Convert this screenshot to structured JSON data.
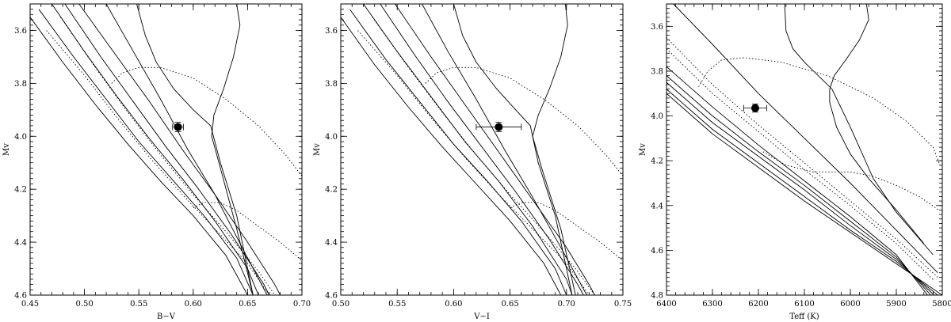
{
  "chart_data": [
    {
      "type": "line",
      "xlabel": "B−V",
      "ylabel": "Mv",
      "xlim": [
        0.45,
        0.7
      ],
      "ylim": [
        4.6,
        3.5
      ],
      "xticks": [
        "0.45",
        "0.50",
        "0.55",
        "0.60",
        "0.65",
        "0.70"
      ],
      "yticks": [
        "3.6",
        "3.8",
        "4.0",
        "4.2",
        "4.4",
        "4.6"
      ],
      "series": [
        {
          "style": "solid",
          "x": [
            0.45,
            0.48,
            0.51,
            0.54,
            0.57,
            0.6,
            0.63,
            0.65
          ],
          "y": [
            3.55,
            3.72,
            3.88,
            4.03,
            4.17,
            4.3,
            4.45,
            4.6
          ]
        },
        {
          "style": "solid",
          "x": [
            0.458,
            0.49,
            0.52,
            0.55,
            0.58,
            0.61,
            0.64,
            0.655
          ],
          "y": [
            3.52,
            3.7,
            3.86,
            4.02,
            4.16,
            4.3,
            4.46,
            4.6
          ]
        },
        {
          "style": "solid",
          "x": [
            0.47,
            0.5,
            0.53,
            0.56,
            0.59,
            0.62,
            0.65,
            0.66
          ],
          "y": [
            3.5,
            3.68,
            3.85,
            4.01,
            4.16,
            4.32,
            4.5,
            4.6
          ]
        },
        {
          "style": "solid",
          "x": [
            0.482,
            0.515,
            0.545,
            0.575,
            0.605,
            0.635,
            0.665,
            0.67
          ],
          "y": [
            3.5,
            3.7,
            3.87,
            4.04,
            4.2,
            4.37,
            4.56,
            4.6
          ]
        },
        {
          "style": "solid",
          "x": [
            0.495,
            0.53,
            0.56,
            0.59,
            0.62,
            0.65,
            0.675,
            0.68
          ],
          "y": [
            3.5,
            3.7,
            3.87,
            4.05,
            4.22,
            4.4,
            4.56,
            4.6
          ]
        },
        {
          "style": "solid",
          "x": [
            0.52,
            0.545,
            0.57,
            0.595,
            0.62,
            0.645,
            0.668
          ],
          "y": [
            3.5,
            3.68,
            3.86,
            4.05,
            4.22,
            4.42,
            4.6
          ]
        },
        {
          "style": "solid",
          "x": [
            0.548,
            0.556,
            0.566,
            0.582,
            0.6,
            0.616,
            0.625,
            0.64,
            0.655
          ],
          "y": [
            3.5,
            3.62,
            3.72,
            3.82,
            3.9,
            3.96,
            4.1,
            4.3,
            4.6
          ]
        },
        {
          "style": "solid",
          "x": [
            0.64,
            0.643,
            0.637,
            0.628,
            0.619,
            0.617,
            0.625,
            0.64,
            0.655
          ],
          "y": [
            3.5,
            3.58,
            3.7,
            3.82,
            3.92,
            4.0,
            4.12,
            4.35,
            4.6
          ]
        },
        {
          "style": "dotted",
          "x": [
            0.465,
            0.5,
            0.53,
            0.56,
            0.59,
            0.62,
            0.65,
            0.67
          ],
          "y": [
            3.6,
            3.77,
            3.93,
            4.08,
            4.22,
            4.35,
            4.48,
            4.6
          ]
        },
        {
          "style": "dotted",
          "x": [
            0.478,
            0.51,
            0.54,
            0.57,
            0.6,
            0.63,
            0.66,
            0.675
          ],
          "y": [
            3.55,
            3.74,
            3.91,
            4.07,
            4.22,
            4.36,
            4.51,
            4.6
          ]
        },
        {
          "style": "dotted",
          "x": [
            0.525,
            0.535,
            0.55,
            0.57,
            0.6,
            0.63,
            0.66,
            0.685,
            0.7
          ],
          "y": [
            3.8,
            3.76,
            3.74,
            3.74,
            3.78,
            3.86,
            3.96,
            4.07,
            4.15
          ]
        },
        {
          "style": "dotted",
          "x": [
            0.6,
            0.61,
            0.625,
            0.64,
            0.66,
            0.68,
            0.7
          ],
          "y": [
            4.27,
            4.25,
            4.25,
            4.28,
            4.34,
            4.4,
            4.47
          ]
        }
      ],
      "points": [
        {
          "x": 0.586,
          "y": 3.965,
          "xerr": 0.005,
          "yerr": 0.018
        }
      ]
    },
    {
      "type": "line",
      "xlabel": "V−I",
      "ylabel": "Mv",
      "xlim": [
        0.5,
        0.75
      ],
      "ylim": [
        4.6,
        3.5
      ],
      "xticks": [
        "0.50",
        "0.55",
        "0.60",
        "0.65",
        "0.70",
        "0.75"
      ],
      "yticks": [
        "3.6",
        "3.8",
        "4.0",
        "4.2",
        "4.4",
        "4.6"
      ],
      "series": [
        {
          "style": "solid",
          "x": [
            0.5,
            0.53,
            0.56,
            0.59,
            0.62,
            0.65,
            0.68,
            0.695
          ],
          "y": [
            3.55,
            3.73,
            3.89,
            4.04,
            4.18,
            4.32,
            4.48,
            4.6
          ]
        },
        {
          "style": "solid",
          "x": [
            0.508,
            0.54,
            0.57,
            0.6,
            0.63,
            0.66,
            0.69,
            0.7
          ],
          "y": [
            3.52,
            3.71,
            3.87,
            4.03,
            4.17,
            4.32,
            4.5,
            4.6
          ]
        },
        {
          "style": "solid",
          "x": [
            0.52,
            0.55,
            0.58,
            0.61,
            0.64,
            0.67,
            0.7,
            0.705
          ],
          "y": [
            3.5,
            3.68,
            3.85,
            4.02,
            4.17,
            4.34,
            4.54,
            4.6
          ]
        },
        {
          "style": "solid",
          "x": [
            0.535,
            0.565,
            0.595,
            0.625,
            0.655,
            0.685,
            0.71,
            0.715
          ],
          "y": [
            3.5,
            3.69,
            3.87,
            4.04,
            4.21,
            4.39,
            4.56,
            4.6
          ]
        },
        {
          "style": "solid",
          "x": [
            0.548,
            0.58,
            0.61,
            0.64,
            0.67,
            0.7,
            0.72,
            0.725
          ],
          "y": [
            3.5,
            3.7,
            3.88,
            4.06,
            4.24,
            4.42,
            4.56,
            4.6
          ]
        },
        {
          "style": "solid",
          "x": [
            0.572,
            0.595,
            0.62,
            0.645,
            0.67,
            0.695,
            0.718
          ],
          "y": [
            3.5,
            3.68,
            3.86,
            4.05,
            4.23,
            4.42,
            4.6
          ]
        },
        {
          "style": "solid",
          "x": [
            0.6,
            0.608,
            0.62,
            0.638,
            0.655,
            0.668,
            0.675,
            0.69,
            0.705
          ],
          "y": [
            3.5,
            3.62,
            3.72,
            3.82,
            3.9,
            3.96,
            4.1,
            4.3,
            4.6
          ]
        },
        {
          "style": "solid",
          "x": [
            0.699,
            0.701,
            0.695,
            0.685,
            0.675,
            0.67,
            0.678,
            0.695,
            0.708
          ],
          "y": [
            3.5,
            3.58,
            3.7,
            3.82,
            3.92,
            4.0,
            4.12,
            4.35,
            4.6
          ]
        },
        {
          "style": "dotted",
          "x": [
            0.515,
            0.55,
            0.58,
            0.61,
            0.64,
            0.67,
            0.7,
            0.72
          ],
          "y": [
            3.6,
            3.77,
            3.93,
            4.08,
            4.22,
            4.35,
            4.48,
            4.6
          ]
        },
        {
          "style": "dotted",
          "x": [
            0.528,
            0.56,
            0.59,
            0.62,
            0.65,
            0.68,
            0.71,
            0.725
          ],
          "y": [
            3.55,
            3.74,
            3.91,
            4.07,
            4.22,
            4.36,
            4.51,
            4.6
          ]
        },
        {
          "style": "dotted",
          "x": [
            0.575,
            0.585,
            0.6,
            0.62,
            0.65,
            0.68,
            0.71,
            0.735,
            0.75
          ],
          "y": [
            3.8,
            3.76,
            3.74,
            3.74,
            3.78,
            3.86,
            3.96,
            4.07,
            4.15
          ]
        },
        {
          "style": "dotted",
          "x": [
            0.65,
            0.66,
            0.675,
            0.69,
            0.71,
            0.73,
            0.75
          ],
          "y": [
            4.27,
            4.25,
            4.25,
            4.28,
            4.34,
            4.4,
            4.47
          ]
        }
      ],
      "points": [
        {
          "x": 0.64,
          "y": 3.965,
          "xerr": 0.02,
          "yerr": 0.018
        }
      ]
    },
    {
      "type": "line",
      "xlabel": "Teff (K)",
      "ylabel": "Mv",
      "xlim": [
        6400,
        5800
      ],
      "ylim": [
        4.8,
        3.5
      ],
      "xticks": [
        "6400",
        "6300",
        "6200",
        "6100",
        "6000",
        "5900",
        "5800"
      ],
      "yticks": [
        "3.6",
        "3.8",
        "4.0",
        "4.2",
        "4.4",
        "4.6",
        "4.8"
      ],
      "series": [
        {
          "style": "solid",
          "x": [
            6400,
            6300,
            6200,
            6100,
            6000,
            5900,
            5800
          ],
          "y": [
            3.9,
            4.08,
            4.23,
            4.38,
            4.52,
            4.66,
            4.8
          ]
        },
        {
          "style": "solid",
          "x": [
            6400,
            6300,
            6200,
            6100,
            6000,
            5900,
            5810
          ],
          "y": [
            3.88,
            4.06,
            4.21,
            4.36,
            4.51,
            4.65,
            4.8
          ]
        },
        {
          "style": "solid",
          "x": [
            6400,
            6300,
            6200,
            6100,
            6000,
            5900,
            5818
          ],
          "y": [
            3.85,
            4.03,
            4.18,
            4.33,
            4.49,
            4.64,
            4.8
          ]
        },
        {
          "style": "solid",
          "x": [
            6400,
            6300,
            6200,
            6100,
            6000,
            5900,
            5825
          ],
          "y": [
            3.82,
            4.0,
            4.16,
            4.31,
            4.47,
            4.63,
            4.8
          ]
        },
        {
          "style": "solid",
          "x": [
            6400,
            6300,
            6200,
            6100,
            6000,
            5900,
            5832
          ],
          "y": [
            3.78,
            3.96,
            4.13,
            4.29,
            4.45,
            4.62,
            4.8
          ]
        },
        {
          "style": "solid",
          "x": [
            6385,
            6300,
            6200,
            6100,
            6000,
            5900,
            5810
          ],
          "y": [
            3.5,
            3.68,
            3.9,
            4.1,
            4.3,
            4.51,
            4.7
          ]
        },
        {
          "style": "solid",
          "x": [
            6143,
            6140,
            6125,
            6100,
            6070,
            6040,
            6000,
            5950,
            5900,
            5820
          ],
          "y": [
            3.5,
            3.62,
            3.7,
            3.76,
            3.82,
            3.88,
            4.05,
            4.28,
            4.43,
            4.62
          ]
        },
        {
          "style": "solid",
          "x": [
            5965,
            5960,
            5980,
            6010,
            6035,
            6045,
            6045,
            6030,
            6000,
            5960,
            5900,
            5840
          ],
          "y": [
            3.5,
            3.57,
            3.66,
            3.75,
            3.82,
            3.88,
            3.94,
            4.05,
            4.17,
            4.28,
            4.42,
            4.57
          ]
        },
        {
          "style": "dotted",
          "x": [
            6400,
            6300,
            6200,
            6100,
            6000,
            5900,
            5810
          ],
          "y": [
            3.65,
            3.86,
            4.04,
            4.21,
            4.38,
            4.55,
            4.72
          ]
        },
        {
          "style": "dotted",
          "x": [
            6400,
            6300,
            6200,
            6100,
            6000,
            5900,
            5820
          ],
          "y": [
            3.7,
            3.9,
            4.07,
            4.24,
            4.4,
            4.57,
            4.73
          ]
        },
        {
          "style": "dotted",
          "x": [
            6330,
            6310,
            6280,
            6230,
            6150,
            6050,
            5950,
            5880,
            5820,
            5805
          ],
          "y": [
            3.87,
            3.8,
            3.75,
            3.74,
            3.76,
            3.82,
            3.92,
            4.02,
            4.14,
            4.22
          ]
        },
        {
          "style": "dotted",
          "x": [
            6190,
            6140,
            6080,
            6000,
            5950,
            5900,
            5850,
            5808
          ],
          "y": [
            4.16,
            4.22,
            4.25,
            4.25,
            4.27,
            4.31,
            4.36,
            4.42
          ]
        }
      ],
      "points": [
        {
          "x": 6207,
          "y": 3.965,
          "xerr": 25,
          "yerr": 0.018
        }
      ]
    }
  ]
}
